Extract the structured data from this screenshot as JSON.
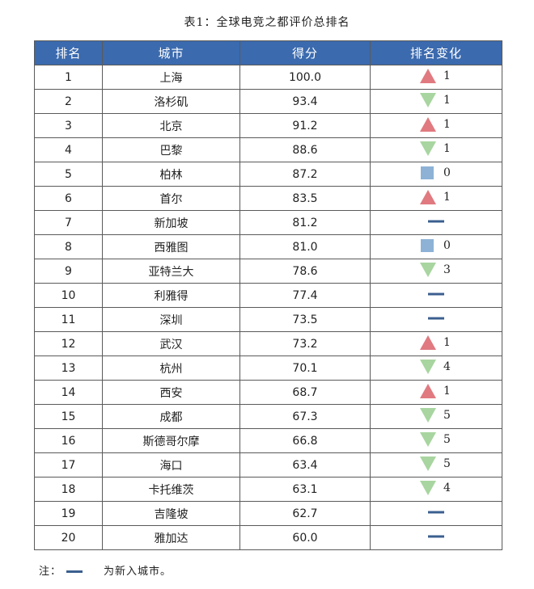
{
  "caption": "表1：全球电竞之都评价总排名",
  "headers": [
    "排名",
    "城市",
    "得分",
    "排名变化"
  ],
  "colors": {
    "header": "#3b6aae",
    "up": "#e07a80",
    "down": "#a8d5a0",
    "same": "#8db2d6",
    "new": "#3b5f8f"
  },
  "rows": [
    {
      "rank": "1",
      "city": "上海",
      "score": "100.0",
      "change": "up",
      "delta": "1"
    },
    {
      "rank": "2",
      "city": "洛杉矶",
      "score": "93.4",
      "change": "down",
      "delta": "1"
    },
    {
      "rank": "3",
      "city": "北京",
      "score": "91.2",
      "change": "up",
      "delta": "1"
    },
    {
      "rank": "4",
      "city": "巴黎",
      "score": "88.6",
      "change": "down",
      "delta": "1"
    },
    {
      "rank": "5",
      "city": "柏林",
      "score": "87.2",
      "change": "same",
      "delta": "0"
    },
    {
      "rank": "6",
      "city": "首尔",
      "score": "83.5",
      "change": "up",
      "delta": "1"
    },
    {
      "rank": "7",
      "city": "新加坡",
      "score": "81.2",
      "change": "new",
      "delta": ""
    },
    {
      "rank": "8",
      "city": "西雅图",
      "score": "81.0",
      "change": "same",
      "delta": "0"
    },
    {
      "rank": "9",
      "city": "亚特兰大",
      "score": "78.6",
      "change": "down",
      "delta": "3"
    },
    {
      "rank": "10",
      "city": "利雅得",
      "score": "77.4",
      "change": "new",
      "delta": ""
    },
    {
      "rank": "11",
      "city": "深圳",
      "score": "73.5",
      "change": "new",
      "delta": ""
    },
    {
      "rank": "12",
      "city": "武汉",
      "score": "73.2",
      "change": "up",
      "delta": "1"
    },
    {
      "rank": "13",
      "city": "杭州",
      "score": "70.1",
      "change": "down",
      "delta": "4"
    },
    {
      "rank": "14",
      "city": "西安",
      "score": "68.7",
      "change": "up",
      "delta": "1"
    },
    {
      "rank": "15",
      "city": "成都",
      "score": "67.3",
      "change": "down",
      "delta": "5"
    },
    {
      "rank": "16",
      "city": "斯德哥尔摩",
      "score": "66.8",
      "change": "down",
      "delta": "5"
    },
    {
      "rank": "17",
      "city": "海口",
      "score": "63.4",
      "change": "down",
      "delta": "5"
    },
    {
      "rank": "18",
      "city": "卡托维茨",
      "score": "63.1",
      "change": "down",
      "delta": "4"
    },
    {
      "rank": "19",
      "city": "吉隆坡",
      "score": "62.7",
      "change": "new",
      "delta": ""
    },
    {
      "rank": "20",
      "city": "雅加达",
      "score": "60.0",
      "change": "new",
      "delta": ""
    }
  ],
  "note": {
    "prefix": "注：",
    "text": "为新入城市。"
  }
}
